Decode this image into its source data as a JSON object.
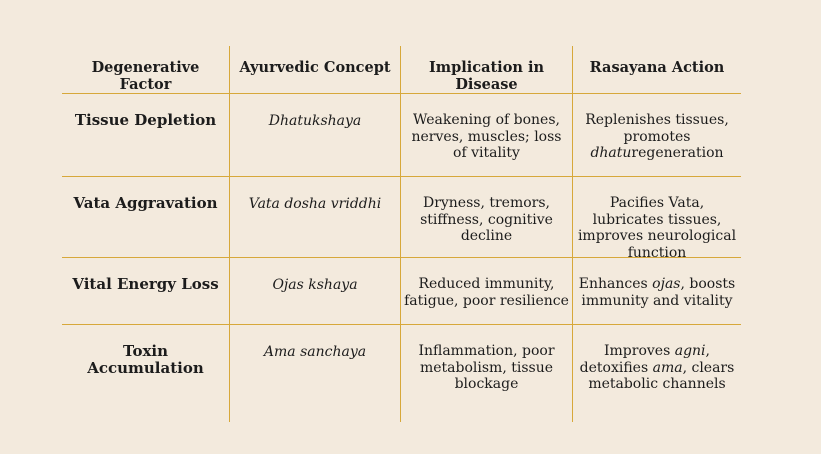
{
  "table": {
    "headers": [
      "Degenerative Factor",
      "Ayurvedic Concept",
      "Implication in Disease",
      "Rasayana Action"
    ],
    "rows": [
      {
        "factor": "Tissue Depletion",
        "concept": "Dhatukshaya",
        "implication": "Weakening of bones, nerves, muscles; loss of vitality",
        "action_pre": "Replenishes tissues, promotes ",
        "action_em1": "dhatu",
        "action_mid": "regeneration",
        "action_em2": "",
        "action_post": ""
      },
      {
        "factor": "Vata Aggravation",
        "concept": "Vata dosha vriddhi",
        "implication": "Dryness, tremors, stiffness, cognitive decline",
        "action_pre": "Pacifies Vata, lubricates tissues, improves neurological function",
        "action_em1": "",
        "action_mid": "",
        "action_em2": "",
        "action_post": ""
      },
      {
        "factor": "Vital Energy Loss",
        "concept": "Ojas kshaya",
        "implication": "Reduced immunity, fatigue, poor resilience",
        "action_pre": "Enhances ",
        "action_em1": "ojas",
        "action_mid": ", boosts immunity and vitality",
        "action_em2": "",
        "action_post": ""
      },
      {
        "factor": "Toxin Accumulation",
        "concept": "Ama sanchaya",
        "implication": "Inflammation, poor metabolism, tissue blockage",
        "action_pre": "Improves ",
        "action_em1": "agni",
        "action_mid": ", detoxifies ",
        "action_em2": "ama",
        "action_post": ", clears metabolic channels"
      }
    ]
  },
  "colors": {
    "background": "#f3eadd",
    "rule": "#d7a83a",
    "text": "#1c1c1c"
  }
}
